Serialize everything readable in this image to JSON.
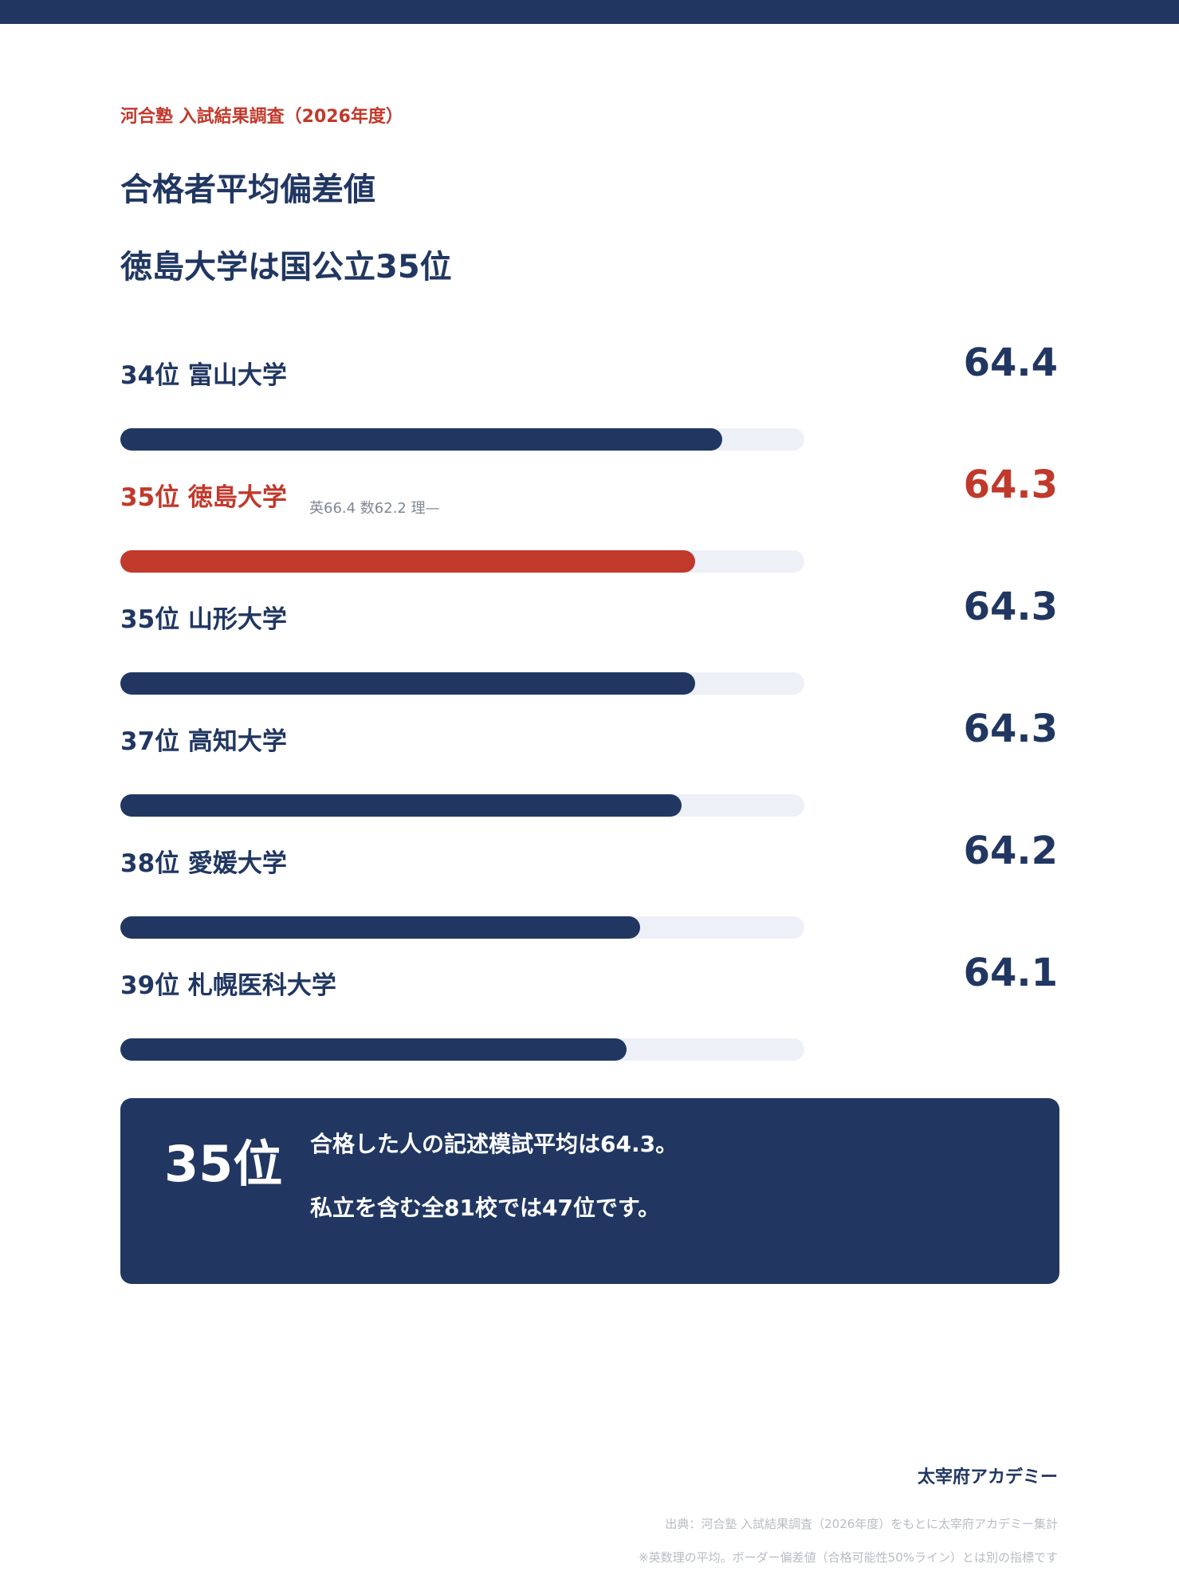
{
  "header": {
    "source_label": "河合塾 入試結果調査（2026年度）",
    "title": "合格者平均偏差値",
    "subtitle": "徳島大学は国公立35位"
  },
  "colors": {
    "navy": "#213762",
    "accent": "#c0392b",
    "track": "#eef0f7"
  },
  "chart_data": {
    "type": "bar",
    "orientation": "horizontal",
    "grid": false,
    "legend": "none",
    "categories": [
      "34位 富山大学",
      "35位 徳島大学",
      "35位 山形大学",
      "37位 高知大学",
      "38位 愛媛大学",
      "39位 札幌医科大学"
    ],
    "values": [
      64.4,
      64.3,
      64.3,
      64.3,
      64.2,
      64.1
    ],
    "value_labels": [
      "64.4",
      "64.3",
      "64.3",
      "64.3",
      "64.2",
      "64.1"
    ],
    "highlight": [
      false,
      true,
      false,
      false,
      false,
      false
    ],
    "notes": [
      "",
      "英66.4 数62.2 理—",
      "",
      "",
      "",
      ""
    ],
    "bar_fill_fraction": [
      0.88,
      0.84,
      0.84,
      0.82,
      0.76,
      0.74
    ]
  },
  "summary": {
    "rank": "35位",
    "line1": "合格した人の記述模試平均は64.3。",
    "line2": "私立を含む全81校では47位です。"
  },
  "footer": {
    "brand": "太宰府アカデミー",
    "source": "出典：河合塾 入試結果調査（2026年度）をもとに太宰府アカデミー集計",
    "note": "※英数理の平均。ボーダー偏差値（合格可能性50%ライン）とは別の指標です"
  }
}
